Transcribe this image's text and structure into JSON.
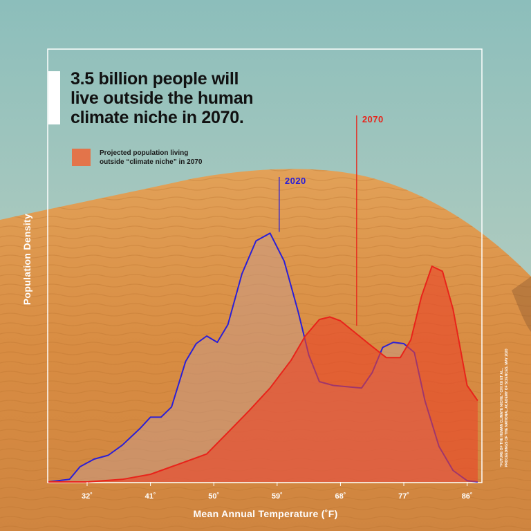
{
  "headline": {
    "lines": [
      "3.5 billion people will",
      "live outside the human",
      "climate niche in 2070."
    ]
  },
  "legend": {
    "lines": [
      "Projected population living",
      "outside “climate niche” in 2070"
    ],
    "color": "#ea6a3d"
  },
  "credit": {
    "lines": [
      "“FUTURE OF THE HUMAN CLIMATE NICHE,” CHI XU ET AL.,",
      "PROCEEDINGS OF THE NATIONAL ACADEMY OF SCIENCES, MAY 2020"
    ]
  },
  "colors": {
    "series_2020": "#2b1fd6",
    "series_2070": "#e8231a",
    "fill_2020": "#c99a86",
    "fill_2070": "#e8452a",
    "frame": "#ffffff",
    "sky_top": "#8fc0bc",
    "sky_bottom": "#c7d3c1",
    "sand": "#d98e45"
  },
  "chart_data": {
    "type": "area",
    "title": "3.5 billion people will live outside the human climate niche in 2070.",
    "xlabel": "Mean Annual Temperature (˚F)",
    "ylabel": "Population Density",
    "x_ticks": [
      32,
      41,
      50,
      59,
      68,
      77,
      86
    ],
    "x_tick_labels": [
      "32˚",
      "41˚",
      "50˚",
      "59˚",
      "68˚",
      "77˚",
      "86˚"
    ],
    "xlim": [
      26.5,
      88
    ],
    "ylim": [
      0,
      1
    ],
    "grid": false,
    "legend_position": "top-left",
    "series": [
      {
        "name": "2020",
        "x": [
          26.5,
          29.5,
          31,
          33,
          35,
          37,
          39.5,
          41,
          42.5,
          44,
          46,
          47.5,
          49,
          50.5,
          52,
          54,
          56,
          58,
          60,
          62,
          63.5,
          65,
          67,
          69,
          71,
          72.5,
          74,
          75.5,
          77,
          78.5,
          80,
          82,
          84,
          86,
          87.5
        ],
        "y": [
          0.0,
          0.01,
          0.06,
          0.09,
          0.105,
          0.145,
          0.21,
          0.255,
          0.255,
          0.295,
          0.475,
          0.545,
          0.575,
          0.55,
          0.62,
          0.82,
          0.95,
          0.98,
          0.87,
          0.67,
          0.5,
          0.395,
          0.38,
          0.375,
          0.37,
          0.43,
          0.53,
          0.55,
          0.545,
          0.51,
          0.32,
          0.14,
          0.045,
          0.005,
          0.0
        ]
      },
      {
        "name": "2070",
        "x": [
          26.5,
          32,
          37,
          41,
          44,
          47,
          49,
          52,
          55,
          58,
          61,
          63,
          65,
          66.5,
          68,
          70,
          72,
          74.5,
          76.5,
          78,
          79.5,
          81,
          82.5,
          84,
          86,
          87.5
        ],
        "y": [
          0.0,
          0.0,
          0.01,
          0.03,
          0.06,
          0.09,
          0.11,
          0.195,
          0.28,
          0.37,
          0.48,
          0.575,
          0.64,
          0.65,
          0.635,
          0.59,
          0.545,
          0.49,
          0.49,
          0.56,
          0.73,
          0.85,
          0.83,
          0.68,
          0.38,
          0.32
        ]
      }
    ]
  }
}
